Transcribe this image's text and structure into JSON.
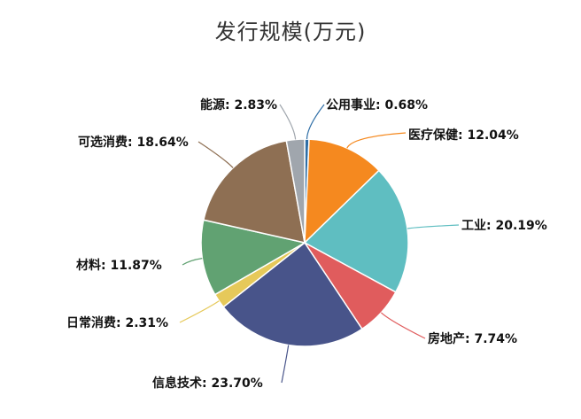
{
  "chart_data": {
    "type": "pie",
    "title": "发行规模(万元)",
    "slices": [
      {
        "name": "公用事业",
        "percent": 0.68,
        "label": "公用事业: 0.68%",
        "color": "#2e6ea6"
      },
      {
        "name": "医疗保健",
        "percent": 12.04,
        "label": "医疗保健: 12.04%",
        "color": "#f5891f"
      },
      {
        "name": "工业",
        "percent": 20.19,
        "label": "工业: 20.19%",
        "color": "#5fbec1"
      },
      {
        "name": "房地产",
        "percent": 7.74,
        "label": "房地产: 7.74%",
        "color": "#e05c5d"
      },
      {
        "name": "信息技术",
        "percent": 23.7,
        "label": "信息技术: 23.70%",
        "color": "#48548a"
      },
      {
        "name": "日常消费",
        "percent": 2.31,
        "label": "日常消费: 2.31%",
        "color": "#e6c95a"
      },
      {
        "name": "材料",
        "percent": 11.87,
        "label": "材料: 11.87%",
        "color": "#61a272"
      },
      {
        "name": "可选消费",
        "percent": 18.64,
        "label": "可选消费: 18.64%",
        "color": "#8e6f53"
      },
      {
        "name": "能源",
        "percent": 2.83,
        "label": "能源: 2.83%",
        "color": "#a0a6ad"
      }
    ]
  }
}
